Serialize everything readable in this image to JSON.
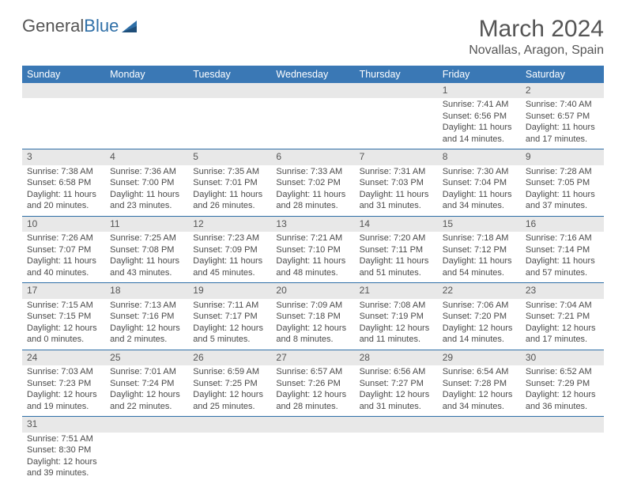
{
  "logo": {
    "text1": "General",
    "text2": "Blue"
  },
  "header": {
    "month": "March 2024",
    "location": "Novallas, Aragon, Spain"
  },
  "colors": {
    "header_bg": "#3a78b5",
    "header_fg": "#ffffff",
    "rule": "#2f6fa7",
    "numrow_bg": "#e8e8e8",
    "body_text": "#4a4a4a",
    "title_text": "#555555",
    "logo_accent": "#2f6fa7"
  },
  "layout": {
    "columns": 7,
    "rows": 6,
    "cell_font_pt": 8,
    "title_font_pt": 22
  },
  "weekdays": [
    "Sunday",
    "Monday",
    "Tuesday",
    "Wednesday",
    "Thursday",
    "Friday",
    "Saturday"
  ],
  "weeks": [
    [
      null,
      null,
      null,
      null,
      null,
      {
        "n": "1",
        "sr": "Sunrise: 7:41 AM",
        "ss": "Sunset: 6:56 PM",
        "d1": "Daylight: 11 hours",
        "d2": "and 14 minutes."
      },
      {
        "n": "2",
        "sr": "Sunrise: 7:40 AM",
        "ss": "Sunset: 6:57 PM",
        "d1": "Daylight: 11 hours",
        "d2": "and 17 minutes."
      }
    ],
    [
      {
        "n": "3",
        "sr": "Sunrise: 7:38 AM",
        "ss": "Sunset: 6:58 PM",
        "d1": "Daylight: 11 hours",
        "d2": "and 20 minutes."
      },
      {
        "n": "4",
        "sr": "Sunrise: 7:36 AM",
        "ss": "Sunset: 7:00 PM",
        "d1": "Daylight: 11 hours",
        "d2": "and 23 minutes."
      },
      {
        "n": "5",
        "sr": "Sunrise: 7:35 AM",
        "ss": "Sunset: 7:01 PM",
        "d1": "Daylight: 11 hours",
        "d2": "and 26 minutes."
      },
      {
        "n": "6",
        "sr": "Sunrise: 7:33 AM",
        "ss": "Sunset: 7:02 PM",
        "d1": "Daylight: 11 hours",
        "d2": "and 28 minutes."
      },
      {
        "n": "7",
        "sr": "Sunrise: 7:31 AM",
        "ss": "Sunset: 7:03 PM",
        "d1": "Daylight: 11 hours",
        "d2": "and 31 minutes."
      },
      {
        "n": "8",
        "sr": "Sunrise: 7:30 AM",
        "ss": "Sunset: 7:04 PM",
        "d1": "Daylight: 11 hours",
        "d2": "and 34 minutes."
      },
      {
        "n": "9",
        "sr": "Sunrise: 7:28 AM",
        "ss": "Sunset: 7:05 PM",
        "d1": "Daylight: 11 hours",
        "d2": "and 37 minutes."
      }
    ],
    [
      {
        "n": "10",
        "sr": "Sunrise: 7:26 AM",
        "ss": "Sunset: 7:07 PM",
        "d1": "Daylight: 11 hours",
        "d2": "and 40 minutes."
      },
      {
        "n": "11",
        "sr": "Sunrise: 7:25 AM",
        "ss": "Sunset: 7:08 PM",
        "d1": "Daylight: 11 hours",
        "d2": "and 43 minutes."
      },
      {
        "n": "12",
        "sr": "Sunrise: 7:23 AM",
        "ss": "Sunset: 7:09 PM",
        "d1": "Daylight: 11 hours",
        "d2": "and 45 minutes."
      },
      {
        "n": "13",
        "sr": "Sunrise: 7:21 AM",
        "ss": "Sunset: 7:10 PM",
        "d1": "Daylight: 11 hours",
        "d2": "and 48 minutes."
      },
      {
        "n": "14",
        "sr": "Sunrise: 7:20 AM",
        "ss": "Sunset: 7:11 PM",
        "d1": "Daylight: 11 hours",
        "d2": "and 51 minutes."
      },
      {
        "n": "15",
        "sr": "Sunrise: 7:18 AM",
        "ss": "Sunset: 7:12 PM",
        "d1": "Daylight: 11 hours",
        "d2": "and 54 minutes."
      },
      {
        "n": "16",
        "sr": "Sunrise: 7:16 AM",
        "ss": "Sunset: 7:14 PM",
        "d1": "Daylight: 11 hours",
        "d2": "and 57 minutes."
      }
    ],
    [
      {
        "n": "17",
        "sr": "Sunrise: 7:15 AM",
        "ss": "Sunset: 7:15 PM",
        "d1": "Daylight: 12 hours",
        "d2": "and 0 minutes."
      },
      {
        "n": "18",
        "sr": "Sunrise: 7:13 AM",
        "ss": "Sunset: 7:16 PM",
        "d1": "Daylight: 12 hours",
        "d2": "and 2 minutes."
      },
      {
        "n": "19",
        "sr": "Sunrise: 7:11 AM",
        "ss": "Sunset: 7:17 PM",
        "d1": "Daylight: 12 hours",
        "d2": "and 5 minutes."
      },
      {
        "n": "20",
        "sr": "Sunrise: 7:09 AM",
        "ss": "Sunset: 7:18 PM",
        "d1": "Daylight: 12 hours",
        "d2": "and 8 minutes."
      },
      {
        "n": "21",
        "sr": "Sunrise: 7:08 AM",
        "ss": "Sunset: 7:19 PM",
        "d1": "Daylight: 12 hours",
        "d2": "and 11 minutes."
      },
      {
        "n": "22",
        "sr": "Sunrise: 7:06 AM",
        "ss": "Sunset: 7:20 PM",
        "d1": "Daylight: 12 hours",
        "d2": "and 14 minutes."
      },
      {
        "n": "23",
        "sr": "Sunrise: 7:04 AM",
        "ss": "Sunset: 7:21 PM",
        "d1": "Daylight: 12 hours",
        "d2": "and 17 minutes."
      }
    ],
    [
      {
        "n": "24",
        "sr": "Sunrise: 7:03 AM",
        "ss": "Sunset: 7:23 PM",
        "d1": "Daylight: 12 hours",
        "d2": "and 19 minutes."
      },
      {
        "n": "25",
        "sr": "Sunrise: 7:01 AM",
        "ss": "Sunset: 7:24 PM",
        "d1": "Daylight: 12 hours",
        "d2": "and 22 minutes."
      },
      {
        "n": "26",
        "sr": "Sunrise: 6:59 AM",
        "ss": "Sunset: 7:25 PM",
        "d1": "Daylight: 12 hours",
        "d2": "and 25 minutes."
      },
      {
        "n": "27",
        "sr": "Sunrise: 6:57 AM",
        "ss": "Sunset: 7:26 PM",
        "d1": "Daylight: 12 hours",
        "d2": "and 28 minutes."
      },
      {
        "n": "28",
        "sr": "Sunrise: 6:56 AM",
        "ss": "Sunset: 7:27 PM",
        "d1": "Daylight: 12 hours",
        "d2": "and 31 minutes."
      },
      {
        "n": "29",
        "sr": "Sunrise: 6:54 AM",
        "ss": "Sunset: 7:28 PM",
        "d1": "Daylight: 12 hours",
        "d2": "and 34 minutes."
      },
      {
        "n": "30",
        "sr": "Sunrise: 6:52 AM",
        "ss": "Sunset: 7:29 PM",
        "d1": "Daylight: 12 hours",
        "d2": "and 36 minutes."
      }
    ],
    [
      {
        "n": "31",
        "sr": "Sunrise: 7:51 AM",
        "ss": "Sunset: 8:30 PM",
        "d1": "Daylight: 12 hours",
        "d2": "and 39 minutes."
      },
      null,
      null,
      null,
      null,
      null,
      null
    ]
  ]
}
